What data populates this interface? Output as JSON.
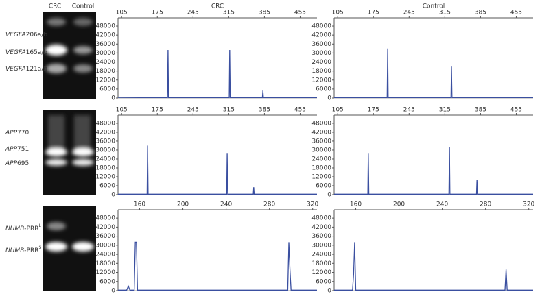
{
  "header": {
    "gel_lanes": [
      "CRC",
      "Control"
    ]
  },
  "gels": [
    {
      "labels": [
        {
          "gene": "VEGFA",
          "isoform": "206a/b"
        },
        {
          "gene": "VEGFA",
          "isoform": "165a/b"
        },
        {
          "gene": "VEGFA",
          "isoform": "121a/b"
        }
      ]
    },
    {
      "labels": [
        {
          "gene": "APP",
          "isoform": "770"
        },
        {
          "gene": "APP",
          "isoform": "751"
        },
        {
          "gene": "APP",
          "isoform": "695"
        }
      ]
    },
    {
      "labels": [
        {
          "gene": "NUMB",
          "isoform": "-PRR",
          "sup": "L"
        },
        {
          "gene": "NUMB",
          "isoform": "-PRR",
          "sup": "S"
        }
      ]
    }
  ],
  "chart_data": [
    {
      "type": "line",
      "title": "CRC",
      "x": [
        98,
        140,
        195,
        196,
        197,
        260,
        316,
        317,
        318,
        350,
        381,
        382,
        383,
        488
      ],
      "values": [
        400,
        300,
        300,
        32000,
        300,
        300,
        300,
        32000,
        300,
        300,
        300,
        5000,
        300,
        300
      ],
      "color": "#3a4fa0",
      "xlim": [
        98,
        488
      ],
      "ylim": [
        0,
        53500
      ],
      "xticks": [
        105,
        175,
        245,
        315,
        385,
        455
      ],
      "yticks": [
        0,
        6000,
        12000,
        18000,
        24000,
        30000,
        36000,
        42000,
        48000
      ]
    },
    {
      "type": "line",
      "title": "Control",
      "x": [
        98,
        150,
        202,
        203,
        204,
        280,
        327,
        328,
        329,
        488
      ],
      "values": [
        300,
        300,
        300,
        33000,
        300,
        300,
        300,
        21000,
        300,
        300
      ],
      "color": "#3a4fa0",
      "xlim": [
        98,
        488
      ],
      "ylim": [
        0,
        53500
      ],
      "xticks": [
        105,
        175,
        245,
        315,
        385,
        455
      ],
      "yticks": [
        0,
        6000,
        12000,
        18000,
        24000,
        30000,
        36000,
        42000,
        48000
      ]
    },
    {
      "type": "line",
      "x": [
        98,
        150,
        155,
        156,
        157,
        250,
        311,
        312,
        313,
        340,
        363,
        364,
        365,
        488
      ],
      "values": [
        300,
        300,
        300,
        33000,
        300,
        300,
        300,
        28000,
        300,
        300,
        300,
        5000,
        300,
        300
      ],
      "color": "#3a4fa0",
      "xlim": [
        98,
        488
      ],
      "ylim": [
        0,
        53500
      ],
      "xticks": [
        105,
        175,
        245,
        315,
        385,
        455
      ],
      "yticks": [
        0,
        6000,
        12000,
        18000,
        24000,
        30000,
        36000,
        42000,
        48000
      ]
    },
    {
      "type": "line",
      "x": [
        98,
        140,
        164,
        165,
        166,
        250,
        323,
        324,
        325,
        350,
        377,
        378,
        379,
        488
      ],
      "values": [
        300,
        300,
        300,
        28000,
        300,
        300,
        300,
        32000,
        300,
        300,
        300,
        10000,
        300,
        300
      ],
      "color": "#3a4fa0",
      "xlim": [
        98,
        488
      ],
      "ylim": [
        0,
        53500
      ],
      "xticks": [
        105,
        175,
        245,
        315,
        385,
        455
      ],
      "yticks": [
        0,
        6000,
        12000,
        18000,
        24000,
        30000,
        36000,
        42000,
        48000
      ]
    },
    {
      "type": "line",
      "x": [
        140,
        148,
        149.5,
        151,
        155,
        156,
        157,
        158,
        220,
        297,
        298,
        299,
        300,
        324
      ],
      "values": [
        300,
        300,
        3000,
        300,
        300,
        32000,
        32000,
        300,
        300,
        300,
        32000,
        14000,
        300,
        300
      ],
      "color": "#3a4fa0",
      "xlim": [
        140,
        324
      ],
      "ylim": [
        0,
        53500
      ],
      "xticks": [
        160,
        200,
        240,
        280,
        320
      ],
      "yticks": [
        0,
        6000,
        12000,
        18000,
        24000,
        30000,
        36000,
        42000,
        48000
      ]
    },
    {
      "type": "line",
      "x": [
        140,
        157,
        158,
        159,
        160,
        220,
        298,
        299,
        300,
        324
      ],
      "values": [
        300,
        300,
        11000,
        32000,
        300,
        300,
        300,
        14000,
        300,
        300
      ],
      "color": "#3a4fa0",
      "xlim": [
        140,
        324
      ],
      "ylim": [
        0,
        53500
      ],
      "xticks": [
        160,
        200,
        240,
        280,
        320
      ],
      "yticks": [
        0,
        6000,
        12000,
        18000,
        24000,
        30000,
        36000,
        42000,
        48000
      ]
    }
  ]
}
